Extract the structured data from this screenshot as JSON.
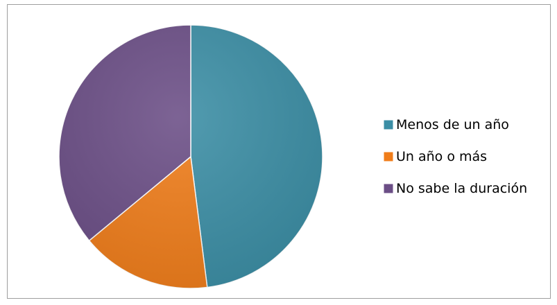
{
  "chart_data": {
    "type": "pie",
    "title": "",
    "slices": [
      {
        "label": "Menos de un año",
        "value": 48,
        "color": "#3b8ea5"
      },
      {
        "label": "Un año o más",
        "value": 16,
        "color": "#f07d1a"
      },
      {
        "label": "No sabe la duración",
        "value": 36,
        "color": "#6b4e86"
      }
    ],
    "start_angle_deg": 0,
    "direction": "clockwise",
    "legend_position": "right"
  }
}
